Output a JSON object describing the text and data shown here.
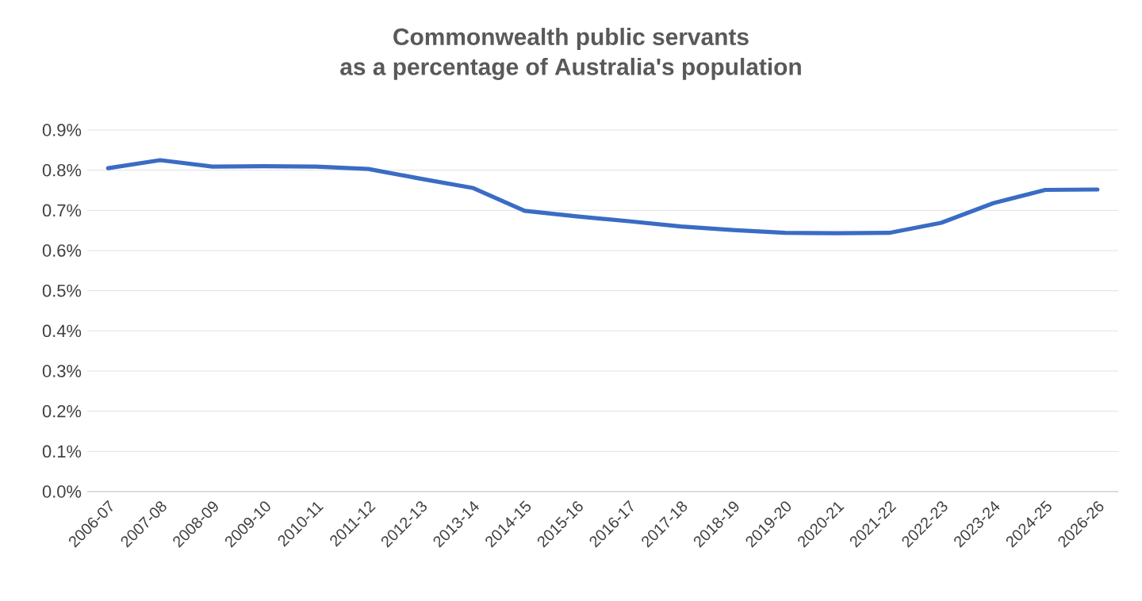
{
  "chart_data": {
    "type": "line",
    "title": "Commonwealth public servants\nas a percentage of Australia's population",
    "categories": [
      "2006-07",
      "2007-08",
      "2008-09",
      "2009-10",
      "2010-11",
      "2011-12",
      "2012-13",
      "2013-14",
      "2014-15",
      "2015-16",
      "2016-17",
      "2017-18",
      "2018-19",
      "2019-20",
      "2020-21",
      "2021-22",
      "2022-23",
      "2023-24",
      "2024-25",
      "2026-26"
    ],
    "series": [
      {
        "color": "#3a6cc4",
        "values": [
          0.805,
          0.825,
          0.809,
          0.81,
          0.809,
          0.803,
          0.779,
          0.756,
          0.699,
          0.685,
          0.673,
          0.66,
          0.651,
          0.644,
          0.643,
          0.644,
          0.669,
          0.718,
          0.751,
          0.752
        ]
      }
    ],
    "ylim": [
      0,
      0.9
    ],
    "yticks": [
      {
        "value": 0,
        "label": "0.0%"
      },
      {
        "value": 0.1,
        "label": "0.1%"
      },
      {
        "value": 0.2,
        "label": "0.2%"
      },
      {
        "value": 0.3,
        "label": "0.3%"
      },
      {
        "value": 0.4,
        "label": "0.4%"
      },
      {
        "value": 0.5,
        "label": "0.5%"
      },
      {
        "value": 0.6,
        "label": "0.6%"
      },
      {
        "value": 0.7,
        "label": "0.7%"
      },
      {
        "value": 0.8,
        "label": "0.8%"
      },
      {
        "value": 0.9,
        "label": "0.9%"
      }
    ],
    "grid": "y",
    "marker": "none",
    "line_style": "solid"
  }
}
